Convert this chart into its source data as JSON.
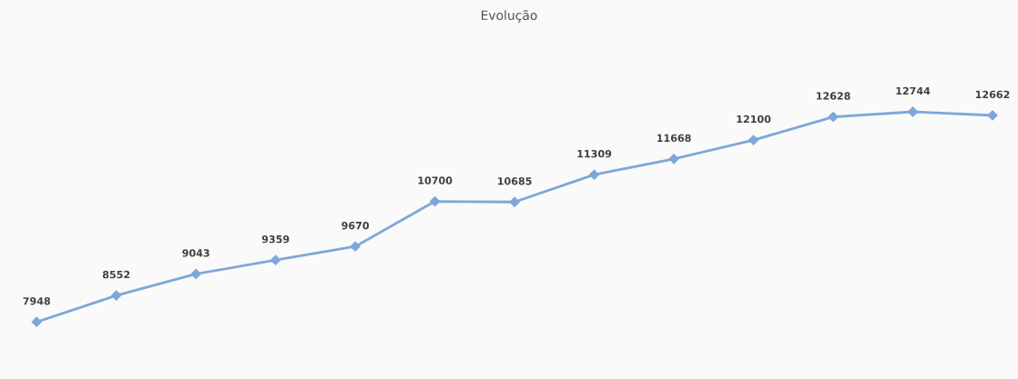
{
  "chart_data": {
    "type": "line",
    "title": "Evolução",
    "categories": [
      null,
      null,
      null,
      null,
      null,
      null,
      null,
      null,
      null,
      null,
      null,
      null,
      null
    ],
    "series": [
      {
        "color": "#7ea7d8",
        "values": [
          7948,
          8552,
          9043,
          9359,
          9670,
          10700,
          10685,
          11309,
          11668,
          12100,
          12628,
          12744,
          12662
        ]
      }
    ],
    "data_labels": true,
    "grid": false,
    "legend": false,
    "marker": "diamond",
    "line_style": "solid"
  }
}
